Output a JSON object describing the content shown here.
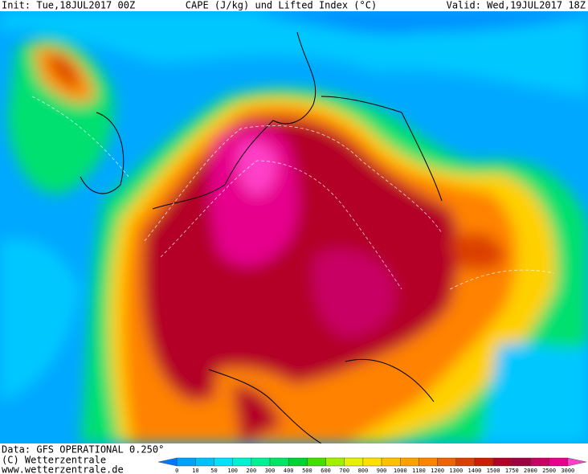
{
  "header": {
    "init": "Init: Tue,18JUL2017 00Z",
    "title": "CAPE (J/kg) und Lifted Index (°C)",
    "valid": "Valid: Wed,19JUL2017 18Z"
  },
  "footer": {
    "data": "Data: GFS OPERATIONAL 0.250°",
    "copyright": "(C) Wetterzentrale",
    "url": "www.wetterzentrale.de"
  },
  "legend": {
    "labels": [
      "0",
      "10",
      "50",
      "100",
      "200",
      "300",
      "400",
      "500",
      "600",
      "700",
      "800",
      "900",
      "1000",
      "1100",
      "1200",
      "1300",
      "1400",
      "1500",
      "1750",
      "2000",
      "2500",
      "3000"
    ],
    "colors": [
      "#0078ff",
      "#00a0ff",
      "#00c0ff",
      "#00e0ff",
      "#00f0d0",
      "#00f096",
      "#00e664",
      "#00d232",
      "#40e000",
      "#a0f000",
      "#e6f000",
      "#ffe000",
      "#ffc000",
      "#ffa000",
      "#ff8200",
      "#f06400",
      "#dc4000",
      "#c82000",
      "#b40028",
      "#a00040",
      "#c80064",
      "#e6008c",
      "#ff40c8"
    ]
  }
}
